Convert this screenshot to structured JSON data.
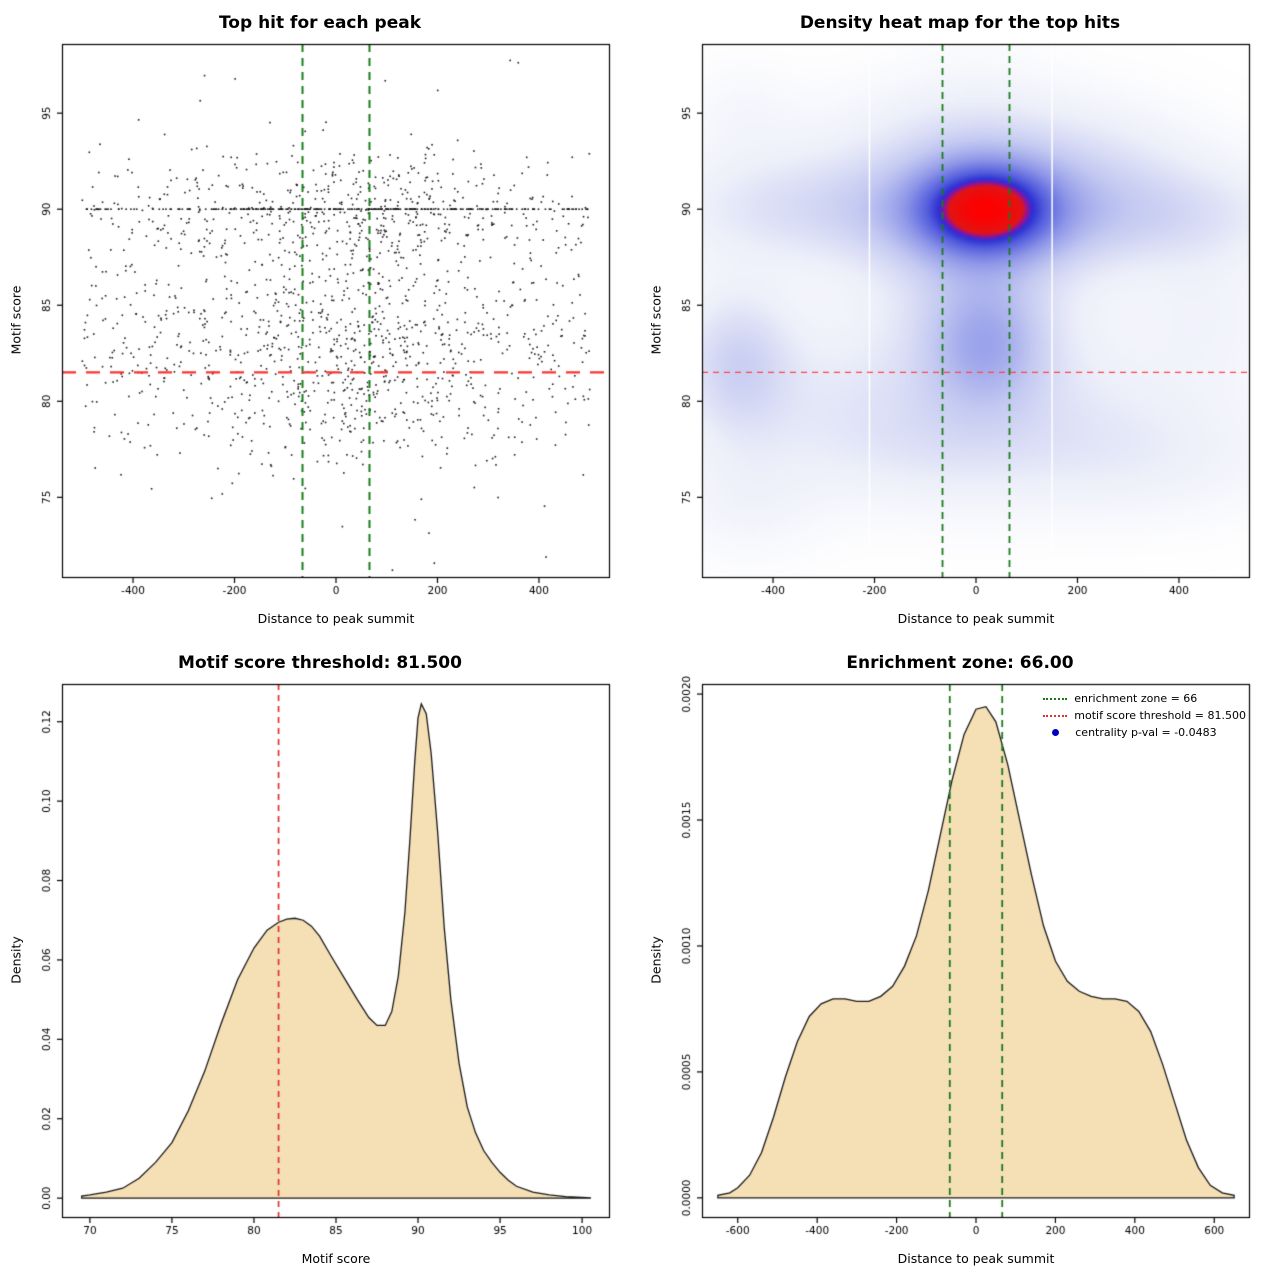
{
  "figure": {
    "background": "#ffffff"
  },
  "chart_data": [
    {
      "type": "scatter",
      "title": "Top hit for each peak",
      "xlabel": "Distance to peak summit",
      "ylabel": "Motif score",
      "xlim": [
        -540,
        540
      ],
      "ylim": [
        70.8,
        98.6
      ],
      "xticks": [
        -400,
        -200,
        0,
        200,
        400
      ],
      "xtick_labels": [
        "-400",
        "-200",
        "0",
        "200",
        "400"
      ],
      "yticks": [
        75,
        80,
        85,
        90,
        95
      ],
      "ytick_labels": [
        "75",
        "80",
        "85",
        "90",
        "95"
      ],
      "point_color": "#1a1a1a",
      "points": {
        "n": 1900,
        "seed": 20240613,
        "x_components": [
          {
            "type": "uniform",
            "min": -500,
            "max": 500,
            "w": 0.58
          },
          {
            "type": "normal",
            "mean": 25,
            "sd": 140,
            "w": 0.42
          }
        ],
        "y_components": [
          {
            "type": "normal",
            "mean": 82.3,
            "sd": 3.1,
            "w": 0.5
          },
          {
            "type": "normal",
            "mean": 90,
            "sd": 1.6,
            "w": 0.27
          },
          {
            "type": "normal",
            "mean": 86,
            "sd": 5.5,
            "w": 0.08
          },
          {
            "type": "fixed",
            "value": 90,
            "w": 0.15
          }
        ]
      },
      "vlines": [
        {
          "x": -66,
          "color": "#1c7a1c",
          "dash": [
            8,
            6
          ],
          "lw": 2
        },
        {
          "x": 66,
          "color": "#1c7a1c",
          "dash": [
            8,
            6
          ],
          "lw": 2
        }
      ],
      "hlines": [
        {
          "y": 81.5,
          "color": "#ff3030",
          "dash": [
            14,
            10
          ],
          "lw": 2.2
        }
      ]
    },
    {
      "type": "heatmap",
      "title": "Density heat map for the top hits",
      "xlabel": "Distance to peak summit",
      "ylabel": "Motif score",
      "xlim": [
        -540,
        540
      ],
      "ylim": [
        70.8,
        98.6
      ],
      "xticks": [
        -400,
        -200,
        0,
        200,
        400
      ],
      "xtick_labels": [
        "-400",
        "-200",
        "0",
        "200",
        "400"
      ],
      "yticks": [
        75,
        80,
        85,
        90,
        95
      ],
      "ytick_labels": [
        "75",
        "80",
        "85",
        "90",
        "95"
      ],
      "gamma": 0.75,
      "hotspot": {
        "x": 20,
        "y": 90
      },
      "kernels": [
        {
          "x": 20,
          "y": 90,
          "sx": 85,
          "sy": 1.5,
          "w": 1.0
        },
        {
          "x": 20,
          "y": 90,
          "sx": 160,
          "sy": 2.3,
          "w": 0.4
        },
        {
          "x": 0,
          "y": 90,
          "sx": 330,
          "sy": 2.0,
          "w": 0.2
        },
        {
          "x": 380,
          "y": 89.7,
          "sx": 150,
          "sy": 1.8,
          "w": 0.16
        },
        {
          "x": -380,
          "y": 90.2,
          "sx": 150,
          "sy": 2.0,
          "w": 0.12
        },
        {
          "x": 20,
          "y": 83,
          "sx": 78,
          "sy": 2.2,
          "w": 0.34
        },
        {
          "x": 10,
          "y": 84,
          "sx": 160,
          "sy": 3.5,
          "w": 0.14
        },
        {
          "x": 0,
          "y": 87.5,
          "sx": 105,
          "sy": 5.5,
          "w": 0.12
        },
        {
          "x": -470,
          "y": 82,
          "sx": 75,
          "sy": 2.6,
          "w": 0.28
        },
        {
          "x": -300,
          "y": 80,
          "sx": 160,
          "sy": 3.0,
          "w": 0.1
        },
        {
          "x": 100,
          "y": 79.5,
          "sx": 260,
          "sy": 2.6,
          "w": 0.12
        },
        {
          "x": 300,
          "y": 77,
          "sx": 190,
          "sy": 2.0,
          "w": 0.1
        },
        {
          "x": -100,
          "y": 77.5,
          "sx": 160,
          "sy": 2.0,
          "w": 0.08
        },
        {
          "x": -30,
          "y": 94,
          "sx": 190,
          "sy": 1.9,
          "w": 0.1
        },
        {
          "x": 250,
          "y": 93,
          "sx": 130,
          "sy": 1.8,
          "w": 0.08
        },
        {
          "x": -450,
          "y": 75,
          "sx": 95,
          "sy": 2.0,
          "w": 0.08
        },
        {
          "x": -460,
          "y": 95,
          "sx": 75,
          "sy": 1.6,
          "w": 0.05
        },
        {
          "x": 450,
          "y": 84.5,
          "sx": 95,
          "sy": 2.6,
          "w": 0.08
        }
      ],
      "colormap": [
        {
          "t": 0,
          "color": "#ffffff"
        },
        {
          "t": 0.15,
          "color": "#eceef9"
        },
        {
          "t": 0.32,
          "color": "#c3c9f1"
        },
        {
          "t": 0.5,
          "color": "#8e96e8"
        },
        {
          "t": 0.66,
          "color": "#555fdd"
        },
        {
          "t": 0.76,
          "color": "#2b2fd2"
        },
        {
          "t": 0.8,
          "color": "#8812a8"
        },
        {
          "t": 0.84,
          "color": "#e01515"
        },
        {
          "t": 1,
          "color": "#ff0000"
        }
      ],
      "white_gaps": [
        -210,
        150
      ],
      "vlines": [
        {
          "x": -66,
          "color": "#1c7a1c",
          "dash": [
            7,
            5
          ],
          "lw": 1.8
        },
        {
          "x": 66,
          "color": "#1c7a1c",
          "dash": [
            7,
            5
          ],
          "lw": 1.8
        }
      ],
      "hlines": [
        {
          "y": 81.5,
          "color": "#ff4545",
          "dash": [
            6,
            5
          ],
          "lw": 1.3
        }
      ]
    },
    {
      "type": "density",
      "title": "Motif score threshold: 81.500",
      "xlabel": "Motif score",
      "ylabel": "Density",
      "xlim": [
        68.3,
        101.7
      ],
      "ylim": [
        -0.005,
        0.1295
      ],
      "xticks": [
        70,
        75,
        80,
        85,
        90,
        95,
        100
      ],
      "xtick_labels": [
        "70",
        "75",
        "80",
        "85",
        "90",
        "95",
        "100"
      ],
      "yticks": [
        0,
        0.02,
        0.04,
        0.06,
        0.08,
        0.1,
        0.12
      ],
      "ytick_labels": [
        "0.00",
        "0.02",
        "0.04",
        "0.06",
        "0.08",
        "0.10",
        "0.12"
      ],
      "fill": "#f5dfb4",
      "stroke": "#1a1a1a",
      "curve": {
        "x": [
          69.5,
          70,
          71,
          72,
          73,
          74,
          75,
          76,
          77,
          78,
          79,
          80,
          80.8,
          81.5,
          82,
          82.5,
          83,
          83.5,
          84,
          84.7,
          85.5,
          86.3,
          87,
          87.5,
          88,
          88.4,
          88.8,
          89.2,
          89.5,
          89.8,
          90,
          90.2,
          90.5,
          90.8,
          91.2,
          91.6,
          92,
          92.5,
          93,
          93.5,
          94,
          94.5,
          95,
          95.5,
          96,
          97,
          98,
          99,
          100,
          100.5
        ],
        "y": [
          0.0005,
          0.0008,
          0.0015,
          0.0025,
          0.005,
          0.009,
          0.014,
          0.022,
          0.032,
          0.044,
          0.055,
          0.063,
          0.0675,
          0.0695,
          0.0703,
          0.0705,
          0.07,
          0.0685,
          0.066,
          0.061,
          0.0555,
          0.05,
          0.0455,
          0.0435,
          0.0435,
          0.047,
          0.056,
          0.072,
          0.09,
          0.11,
          0.121,
          0.1245,
          0.122,
          0.112,
          0.092,
          0.068,
          0.05,
          0.034,
          0.023,
          0.0165,
          0.012,
          0.009,
          0.0065,
          0.0045,
          0.003,
          0.0015,
          0.0008,
          0.0004,
          0.0002,
          0.0001
        ]
      },
      "vlines": [
        {
          "x": 81.5,
          "color": "#e03030",
          "dash": [
            6,
            5
          ],
          "lw": 1.7
        }
      ]
    },
    {
      "type": "density",
      "title": "Enrichment zone: 66.00",
      "xlabel": "Distance to peak summit",
      "ylabel": "Density",
      "xlim": [
        -690,
        690
      ],
      "ylim": [
        -8e-05,
        0.00204
      ],
      "xticks": [
        -600,
        -400,
        -200,
        0,
        200,
        400,
        600
      ],
      "xtick_labels": [
        "-600",
        "-400",
        "-200",
        "0",
        "200",
        "400",
        "600"
      ],
      "yticks": [
        0,
        0.0005,
        0.001,
        0.0015,
        0.002
      ],
      "ytick_labels": [
        "0.0000",
        "0.0005",
        "0.0010",
        "0.0015",
        "0.0020"
      ],
      "fill": "#f5dfb4",
      "stroke": "#1a1a1a",
      "curve": {
        "x": [
          -650,
          -620,
          -600,
          -570,
          -540,
          -510,
          -480,
          -450,
          -420,
          -390,
          -360,
          -330,
          -300,
          -270,
          -240,
          -210,
          -180,
          -150,
          -120,
          -90,
          -60,
          -30,
          0,
          25,
          50,
          80,
          110,
          140,
          170,
          200,
          230,
          260,
          290,
          320,
          350,
          380,
          410,
          440,
          470,
          500,
          530,
          560,
          590,
          620,
          650
        ],
        "y": [
          1e-05,
          2e-05,
          4e-05,
          9e-05,
          0.00018,
          0.00032,
          0.00048,
          0.00062,
          0.00072,
          0.00077,
          0.00079,
          0.00079,
          0.00078,
          0.00078,
          0.0008,
          0.00084,
          0.00092,
          0.00104,
          0.00122,
          0.00144,
          0.00166,
          0.00184,
          0.00194,
          0.00195,
          0.00189,
          0.00172,
          0.0015,
          0.00128,
          0.00108,
          0.00094,
          0.00086,
          0.00082,
          0.0008,
          0.00079,
          0.00079,
          0.00078,
          0.00074,
          0.00066,
          0.00053,
          0.00038,
          0.00023,
          0.00012,
          5e-05,
          2e-05,
          1e-05
        ]
      },
      "vlines": [
        {
          "x": -66,
          "color": "#1c7a1c",
          "dash": [
            7,
            5
          ],
          "lw": 1.8
        },
        {
          "x": 66,
          "color": "#1c7a1c",
          "dash": [
            7,
            5
          ],
          "lw": 1.8
        }
      ],
      "legend": [
        {
          "label": "enrichment zone = 66",
          "marker": "green-dotted-line",
          "color": "#1c7a1c"
        },
        {
          "label": "motif score threshold = 81.500",
          "marker": "red-dotted-line",
          "color": "#e03030"
        },
        {
          "label": "centrality p-val = -0.0483",
          "marker": "blue-dot",
          "color": "#0000bb"
        }
      ]
    }
  ]
}
